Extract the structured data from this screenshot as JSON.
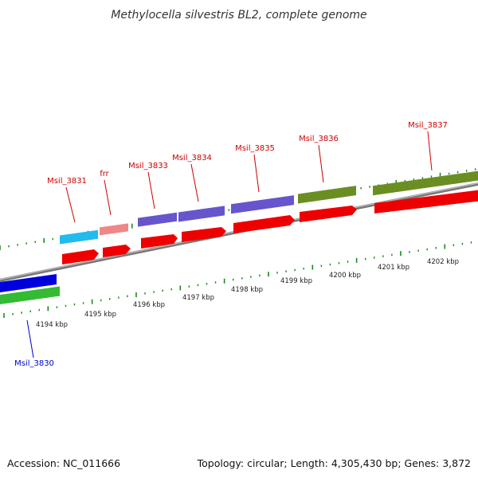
{
  "title": "Methylocella silvestris BL2, complete genome",
  "accession": "Accession: NC_011666",
  "summary": "Topology: circular; Length: 4,305,430 bp; Genes: 3,872",
  "colors": {
    "backbone": "#8a8a8a",
    "tick": "#1a8a1a",
    "label_top": "#cc0000",
    "label_bottom": "#0000cc",
    "cds": "#ee0000",
    "gene_cyan": "#22bbee",
    "gene_pink": "#ee8888",
    "gene_purple": "#6655cc",
    "gene_olive": "#6b8e23",
    "gene_blue": "#0000dd",
    "gene_green": "#33bb33"
  },
  "kbp_labels": [
    "4194 kbp",
    "4195 kbp",
    "4196 kbp",
    "4197 kbp",
    "4198 kbp",
    "4199 kbp",
    "4200 kbp",
    "4201 kbp",
    "4202 kbp"
  ],
  "gene_labels_top": [
    "Msil_3831",
    "frr",
    "Msil_3833",
    "Msil_3834",
    "Msil_3835",
    "Msil_3836",
    "Msil_3837"
  ],
  "gene_labels_bottom": [
    "Msil_3830"
  ]
}
